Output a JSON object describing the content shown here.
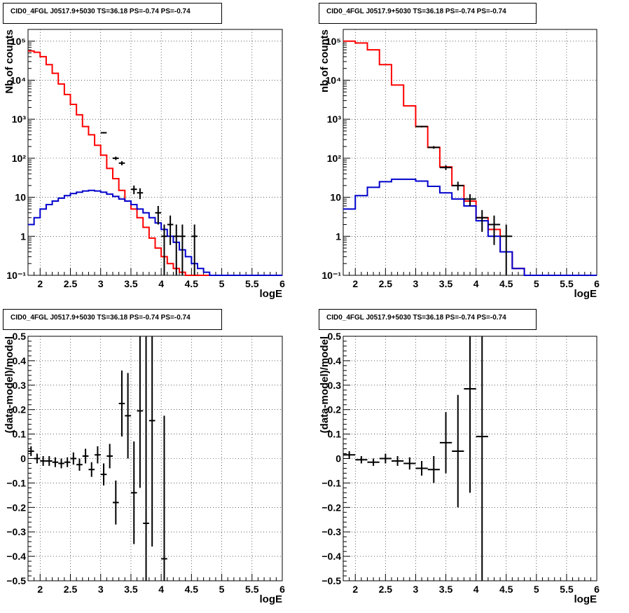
{
  "colors": {
    "data": "#000000",
    "model": "#ff0000",
    "source": "#0000cc",
    "grid": "#000000"
  },
  "chart_data": [
    {
      "id": "counts-left",
      "type": "line",
      "title": "CID0_4FGL J0517.9+5030 TS=36.18 PS=-0.74 PS=-0.74",
      "xlabel": "logE",
      "ylabel": "Nb of counts",
      "xlim": [
        1.8,
        6.0
      ],
      "ylim": [
        0.1,
        200000
      ],
      "yscale": "log",
      "grid": true,
      "xticks": [
        "2",
        "2.5",
        "3",
        "3.5",
        "4",
        "4.5",
        "5",
        "5.5",
        "6"
      ],
      "yticks": [
        "10⁻¹",
        "1",
        "10",
        "10²",
        "10³",
        "10⁴",
        "10⁵"
      ],
      "series": [
        {
          "kind": "model",
          "edges": [
            1.8,
            1.9,
            2.0,
            2.1,
            2.2,
            2.3,
            2.4,
            2.5,
            2.6,
            2.7,
            2.8,
            2.9,
            3.0,
            3.1,
            3.2,
            3.3,
            3.4,
            3.5,
            3.6,
            3.7,
            3.8,
            3.9,
            4.0,
            4.1,
            4.2,
            4.3,
            4.4,
            4.5,
            4.6,
            4.7,
            4.8,
            4.9,
            5.0,
            5.1,
            5.2,
            5.3,
            5.4,
            5.5,
            5.6,
            5.7,
            5.8,
            5.9,
            6.0
          ],
          "values": [
            56000,
            52000,
            40000,
            25000,
            15000,
            8000,
            4300,
            2400,
            1300,
            650,
            400,
            215,
            120,
            55,
            30,
            15,
            8,
            5,
            3,
            1.7,
            0.9,
            0.5,
            0.3,
            0.2,
            0.15,
            0.12,
            0.1,
            0.1,
            0.1,
            0.1,
            0.1,
            0.1,
            0.1,
            0.1,
            0.1,
            0.1,
            0.1,
            0.1,
            0.1,
            0.1,
            0.1,
            0.1
          ]
        },
        {
          "kind": "source",
          "edges": [
            1.8,
            1.9,
            2.0,
            2.1,
            2.2,
            2.3,
            2.4,
            2.5,
            2.6,
            2.7,
            2.8,
            2.9,
            3.0,
            3.1,
            3.2,
            3.3,
            3.4,
            3.5,
            3.6,
            3.7,
            3.8,
            3.9,
            4.0,
            4.1,
            4.2,
            4.3,
            4.4,
            4.5,
            4.6,
            4.7,
            4.8,
            4.9,
            5.0,
            5.1,
            5.2,
            5.3,
            5.4,
            5.5,
            5.6,
            5.7,
            5.8,
            5.9,
            6.0
          ],
          "values": [
            2,
            3,
            5,
            6.5,
            8,
            9.5,
            11,
            12.5,
            13.5,
            14.5,
            15,
            14.5,
            13.5,
            12,
            10.5,
            9,
            8,
            6.5,
            5,
            4,
            3,
            2.2,
            1.5,
            1,
            0.7,
            0.45,
            0.3,
            0.2,
            0.15,
            0.12,
            0.1,
            0.1,
            0.1,
            0.1,
            0.1,
            0.1,
            0.1,
            0.1,
            0.1,
            0.1,
            0.1,
            0.1
          ]
        },
        {
          "kind": "data",
          "points": [
            {
              "x": 3.05,
              "y": 450,
              "xerr": 0.05,
              "ylo": 430,
              "yhi": 470
            },
            {
              "x": 3.25,
              "y": 100,
              "xerr": 0.05,
              "ylo": 90,
              "yhi": 110
            },
            {
              "x": 3.35,
              "y": 75,
              "xerr": 0.05,
              "ylo": 66,
              "yhi": 84
            },
            {
              "x": 3.55,
              "y": 16,
              "xerr": 0.05,
              "ylo": 12,
              "yhi": 20
            },
            {
              "x": 3.65,
              "y": 13,
              "xerr": 0.05,
              "ylo": 9,
              "yhi": 17
            },
            {
              "x": 3.95,
              "y": 4,
              "xerr": 0.05,
              "ylo": 2,
              "yhi": 6
            },
            {
              "x": 4.05,
              "y": 1,
              "xerr": 0.05,
              "ylo": 0.1,
              "yhi": 2
            },
            {
              "x": 4.15,
              "y": 2,
              "xerr": 0.05,
              "ylo": 0.6,
              "yhi": 3.4
            },
            {
              "x": 4.25,
              "y": 1,
              "xerr": 0.05,
              "ylo": 0.1,
              "yhi": 2
            },
            {
              "x": 4.35,
              "y": 1,
              "xerr": 0.05,
              "ylo": 0.1,
              "yhi": 2
            },
            {
              "x": 4.55,
              "y": 1,
              "xerr": 0.05,
              "ylo": 0.1,
              "yhi": 2
            }
          ]
        }
      ]
    },
    {
      "id": "counts-right",
      "type": "line",
      "title": "CID0_4FGL J0517.9+5030 TS=36.18 PS=-0.74 PS=-0.74",
      "xlabel": "logE",
      "ylabel": "nb of counts",
      "xlim": [
        1.8,
        6.0
      ],
      "ylim": [
        0.1,
        200000
      ],
      "yscale": "log",
      "grid": true,
      "xticks": [
        "2",
        "2.5",
        "3",
        "3.5",
        "4",
        "4.5",
        "5",
        "5.5",
        "6"
      ],
      "yticks": [
        "10⁻¹",
        "1",
        "10",
        "10²",
        "10³",
        "10⁴",
        "10⁵"
      ],
      "series": [
        {
          "kind": "model",
          "edges": [
            1.8,
            2.0,
            2.2,
            2.4,
            2.6,
            2.8,
            3.0,
            3.2,
            3.4,
            3.6,
            3.8,
            4.0,
            4.2,
            4.4,
            4.6,
            4.8,
            5.0,
            5.2,
            5.4,
            5.6,
            5.8,
            6.0
          ],
          "values": [
            100000,
            90000,
            60000,
            25000,
            7500,
            2200,
            650,
            190,
            60,
            20,
            8,
            3,
            1.5,
            0.4,
            0.15,
            0.1,
            0.1,
            0.1,
            0.1,
            0.1,
            0.1
          ]
        },
        {
          "kind": "source",
          "edges": [
            1.8,
            2.0,
            2.2,
            2.4,
            2.6,
            2.8,
            3.0,
            3.2,
            3.4,
            3.6,
            3.8,
            4.0,
            4.2,
            4.4,
            4.6,
            4.8,
            5.0,
            5.2,
            5.4,
            5.6,
            5.8,
            6.0
          ],
          "values": [
            5,
            11,
            18,
            25,
            29,
            29,
            26,
            19,
            13,
            9,
            6,
            2.5,
            1,
            0.4,
            0.15,
            0.1,
            0.1,
            0.1,
            0.1,
            0.1,
            0.1
          ]
        },
        {
          "kind": "data",
          "points": [
            {
              "x": 3.1,
              "y": 650,
              "xerr": 0.1,
              "ylo": 620,
              "yhi": 680
            },
            {
              "x": 3.3,
              "y": 190,
              "xerr": 0.1,
              "ylo": 175,
              "yhi": 205
            },
            {
              "x": 3.5,
              "y": 58,
              "xerr": 0.1,
              "ylo": 50,
              "yhi": 66
            },
            {
              "x": 3.7,
              "y": 20,
              "xerr": 0.1,
              "ylo": 15,
              "yhi": 25
            },
            {
              "x": 3.9,
              "y": 9,
              "xerr": 0.1,
              "ylo": 6,
              "yhi": 12
            },
            {
              "x": 4.1,
              "y": 3,
              "xerr": 0.1,
              "ylo": 1.3,
              "yhi": 4.7
            },
            {
              "x": 4.3,
              "y": 2,
              "xerr": 0.1,
              "ylo": 0.6,
              "yhi": 3.4
            },
            {
              "x": 4.5,
              "y": 1,
              "xerr": 0.1,
              "ylo": 0.1,
              "yhi": 2
            }
          ]
        }
      ]
    },
    {
      "id": "residual-left",
      "type": "scatter",
      "title": "CID0_4FGL J0517.9+5030 TS=36.18 PS=-0.74 PS=-0.74",
      "xlabel": "logE",
      "ylabel": "(data-model)/model",
      "xlim": [
        1.8,
        6.0
      ],
      "ylim": [
        -0.5,
        0.5
      ],
      "yscale": "linear",
      "grid": true,
      "xticks": [
        "2",
        "2.5",
        "3",
        "3.5",
        "4",
        "4.5",
        "5",
        "5.5",
        "6"
      ],
      "yticks": [
        "−0.5",
        "−0.4",
        "−0.3",
        "−0.2",
        "−0.1",
        "0",
        "0.1",
        "0.2",
        "0.3",
        "0.4",
        "0.5"
      ],
      "series": [
        {
          "kind": "data",
          "points": [
            {
              "x": 1.85,
              "y": 0.03,
              "xerr": 0.05,
              "ylo": 0.01,
              "yhi": 0.05
            },
            {
              "x": 1.95,
              "y": 0.0,
              "xerr": 0.05,
              "ylo": -0.02,
              "yhi": 0.02
            },
            {
              "x": 2.05,
              "y": -0.01,
              "xerr": 0.05,
              "ylo": -0.03,
              "yhi": 0.01
            },
            {
              "x": 2.15,
              "y": -0.01,
              "xerr": 0.05,
              "ylo": -0.03,
              "yhi": 0.01
            },
            {
              "x": 2.25,
              "y": -0.015,
              "xerr": 0.05,
              "ylo": -0.035,
              "yhi": 0.005
            },
            {
              "x": 2.35,
              "y": -0.02,
              "xerr": 0.05,
              "ylo": -0.04,
              "yhi": 0.0
            },
            {
              "x": 2.45,
              "y": -0.015,
              "xerr": 0.05,
              "ylo": -0.035,
              "yhi": 0.005
            },
            {
              "x": 2.55,
              "y": 0.0,
              "xerr": 0.05,
              "ylo": -0.025,
              "yhi": 0.025
            },
            {
              "x": 2.65,
              "y": -0.025,
              "xerr": 0.05,
              "ylo": -0.05,
              "yhi": 0.0
            },
            {
              "x": 2.75,
              "y": 0.01,
              "xerr": 0.05,
              "ylo": -0.02,
              "yhi": 0.04
            },
            {
              "x": 2.85,
              "y": -0.045,
              "xerr": 0.05,
              "ylo": -0.075,
              "yhi": -0.015
            },
            {
              "x": 2.95,
              "y": 0.015,
              "xerr": 0.05,
              "ylo": -0.02,
              "yhi": 0.05
            },
            {
              "x": 3.05,
              "y": -0.065,
              "xerr": 0.05,
              "ylo": -0.11,
              "yhi": -0.02
            },
            {
              "x": 3.15,
              "y": 0.01,
              "xerr": 0.05,
              "ylo": -0.04,
              "yhi": 0.06
            },
            {
              "x": 3.25,
              "y": -0.18,
              "xerr": 0.05,
              "ylo": -0.27,
              "yhi": -0.09
            },
            {
              "x": 3.35,
              "y": 0.225,
              "xerr": 0.05,
              "ylo": 0.09,
              "yhi": 0.36
            },
            {
              "x": 3.45,
              "y": 0.175,
              "xerr": 0.05,
              "ylo": 0.0,
              "yhi": 0.35
            },
            {
              "x": 3.55,
              "y": -0.14,
              "xerr": 0.05,
              "ylo": -0.35,
              "yhi": 0.07
            },
            {
              "x": 3.65,
              "y": 0.195,
              "xerr": 0.05,
              "ylo": -0.12,
              "yhi": 0.5
            },
            {
              "x": 3.75,
              "y": -0.265,
              "xerr": 0.05,
              "ylo": -0.5,
              "yhi": 0.5
            },
            {
              "x": 3.85,
              "y": 0.155,
              "xerr": 0.05,
              "ylo": -0.36,
              "yhi": 0.5
            },
            {
              "x": 4.05,
              "y": -0.41,
              "xerr": 0.05,
              "ylo": -0.5,
              "yhi": 0.175
            }
          ]
        }
      ]
    },
    {
      "id": "residual-right",
      "type": "scatter",
      "title": "CID0_4FGL J0517.9+5030 TS=36.18 PS=-0.74 PS=-0.74",
      "xlabel": "logE",
      "ylabel": "(data-model)/model",
      "xlim": [
        1.8,
        6.0
      ],
      "ylim": [
        -0.5,
        0.5
      ],
      "yscale": "linear",
      "grid": true,
      "xticks": [
        "2",
        "2.5",
        "3",
        "3.5",
        "4",
        "4.5",
        "5",
        "5.5",
        "6"
      ],
      "yticks": [
        "−0.5",
        "−0.4",
        "−0.3",
        "−0.2",
        "−0.1",
        "0",
        "0.1",
        "0.2",
        "0.3",
        "0.4",
        "0.5"
      ],
      "series": [
        {
          "kind": "data",
          "points": [
            {
              "x": 1.9,
              "y": 0.015,
              "xerr": 0.1,
              "ylo": 0.0,
              "yhi": 0.03
            },
            {
              "x": 2.1,
              "y": -0.005,
              "xerr": 0.1,
              "ylo": -0.02,
              "yhi": 0.01
            },
            {
              "x": 2.3,
              "y": -0.015,
              "xerr": 0.1,
              "ylo": -0.03,
              "yhi": 0.0
            },
            {
              "x": 2.5,
              "y": 0.0,
              "xerr": 0.1,
              "ylo": -0.02,
              "yhi": 0.02
            },
            {
              "x": 2.7,
              "y": -0.01,
              "xerr": 0.1,
              "ylo": -0.03,
              "yhi": 0.01
            },
            {
              "x": 2.9,
              "y": -0.02,
              "xerr": 0.1,
              "ylo": -0.045,
              "yhi": 0.005
            },
            {
              "x": 3.1,
              "y": -0.04,
              "xerr": 0.1,
              "ylo": -0.07,
              "yhi": -0.01
            },
            {
              "x": 3.3,
              "y": -0.045,
              "xerr": 0.1,
              "ylo": -0.1,
              "yhi": 0.01
            },
            {
              "x": 3.5,
              "y": 0.065,
              "xerr": 0.1,
              "ylo": -0.06,
              "yhi": 0.19
            },
            {
              "x": 3.7,
              "y": 0.03,
              "xerr": 0.1,
              "ylo": -0.2,
              "yhi": 0.26
            },
            {
              "x": 3.9,
              "y": 0.285,
              "xerr": 0.1,
              "ylo": -0.14,
              "yhi": 0.5
            },
            {
              "x": 4.1,
              "y": 0.09,
              "xerr": 0.1,
              "ylo": -0.5,
              "yhi": 0.5
            }
          ]
        }
      ]
    }
  ]
}
